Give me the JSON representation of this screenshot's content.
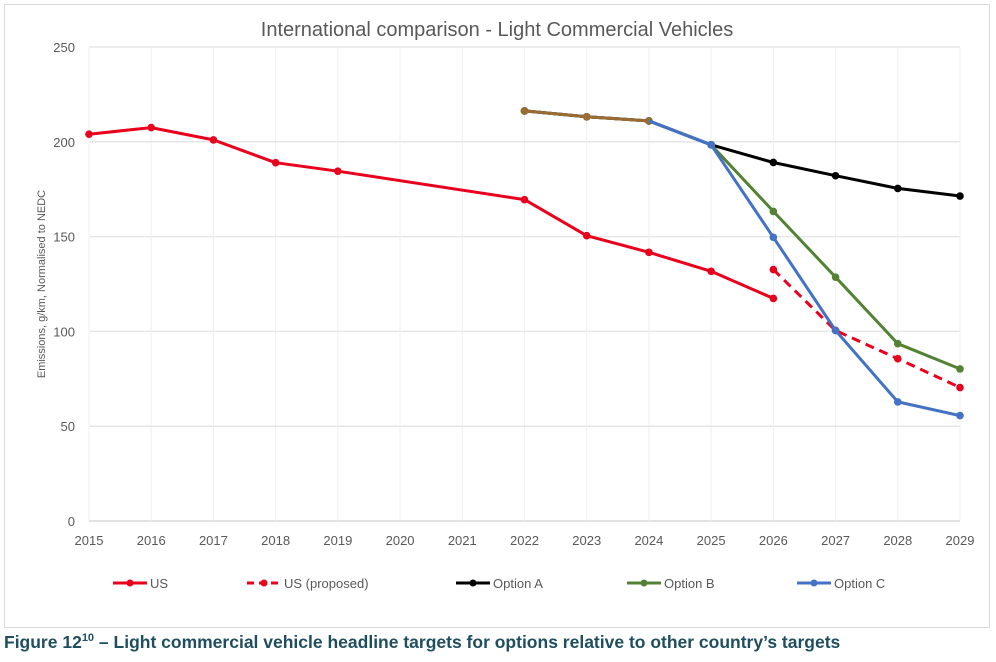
{
  "caption": {
    "prefix": "Figure 12",
    "sup": "10",
    "text": " – Light commercial vehicle headline targets for options relative to other country’s targets"
  },
  "chart_data": {
    "type": "line",
    "title": "International comparison - Light Commercial Vehicles",
    "xlabel": "",
    "ylabel": "Emissions, g/km, Normalised to NEDC",
    "x": [
      2015,
      2016,
      2017,
      2018,
      2019,
      2020,
      2021,
      2022,
      2023,
      2024,
      2025,
      2026,
      2027,
      2028,
      2029
    ],
    "ylim": [
      0,
      250
    ],
    "yticks": [
      0,
      50,
      100,
      150,
      200,
      250
    ],
    "grid": true,
    "legend_position": "bottom",
    "series": [
      {
        "name": "US",
        "color": "#e8001c",
        "dashed": false,
        "points": [
          [
            2015,
            204
          ],
          [
            2016,
            207.5
          ],
          [
            2017,
            201
          ],
          [
            2018,
            189
          ],
          [
            2019,
            184.5
          ],
          [
            2022,
            169.5
          ],
          [
            2023,
            150.5
          ],
          [
            2024,
            141.7
          ],
          [
            2025,
            131.7
          ],
          [
            2026,
            117.4
          ]
        ]
      },
      {
        "name": "US (proposed)",
        "color": "#e8001c",
        "dashed": true,
        "points": [
          [
            2026,
            132.6
          ],
          [
            2027,
            100.5
          ],
          [
            2028,
            85.6
          ],
          [
            2029,
            70.4
          ]
        ]
      },
      {
        "name": "Option A",
        "color": "#000000",
        "dashed": false,
        "points": [
          [
            2022,
            216.3
          ],
          [
            2023,
            213.2
          ],
          [
            2024,
            211
          ],
          [
            2025,
            198.4
          ],
          [
            2026,
            189.1
          ],
          [
            2027,
            182.1
          ],
          [
            2028,
            175.4
          ],
          [
            2029,
            171.4
          ]
        ]
      },
      {
        "name": "Option B",
        "color": "#548235",
        "dashed": false,
        "points": [
          [
            2022,
            216.3
          ],
          [
            2023,
            213.2
          ],
          [
            2024,
            211
          ],
          [
            2025,
            198.4
          ],
          [
            2026,
            163.3
          ],
          [
            2027,
            128.6
          ],
          [
            2028,
            93.5
          ],
          [
            2029,
            80.2
          ]
        ]
      },
      {
        "name": "Option C",
        "color": "#4472c4",
        "dashed": false,
        "points": [
          [
            2022,
            216.3
          ],
          [
            2023,
            213.2
          ],
          [
            2024,
            211
          ],
          [
            2025,
            198.4
          ],
          [
            2026,
            149.6
          ],
          [
            2027,
            100.5
          ],
          [
            2028,
            62.8
          ],
          [
            2029,
            55.6
          ]
        ]
      }
    ],
    "overlap_color": "#9c6b30"
  }
}
